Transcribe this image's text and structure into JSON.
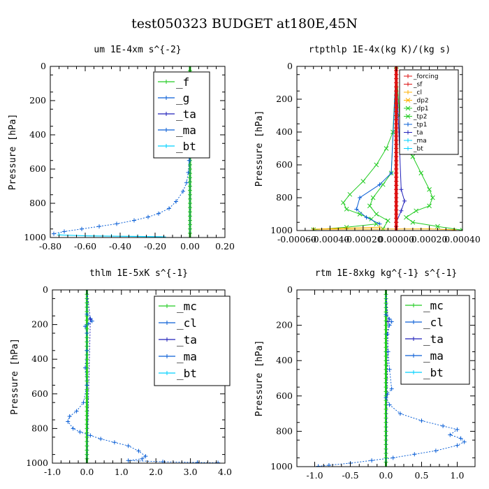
{
  "figure_title": "test050323  BUDGET at180E,45N",
  "colors": {
    "green": "#22cc22",
    "blue": "#0a5fd6",
    "cyan": "#00d0ff",
    "red": "#dd1111",
    "orange": "#ffb000",
    "navy": "#2222bb"
  },
  "chart_data": [
    {
      "type": "line",
      "title": "um   1E-4xm s^{-2}",
      "ylabel": "Pressure [hPa]",
      "xlabel": "",
      "xlim": [
        -0.8,
        0.2
      ],
      "ylim": [
        1000,
        0
      ],
      "xticks": [
        -0.8,
        -0.6,
        -0.4,
        -0.2,
        0.0,
        0.2
      ],
      "xtick_labels": [
        "-0.80",
        "-0.60",
        "-0.40",
        "-0.20",
        "0.00",
        "0.20"
      ],
      "yticks": [
        0,
        200,
        400,
        600,
        800,
        1000
      ],
      "ytick_labels": [
        "0",
        "200",
        "400",
        "600",
        "800",
        "1000"
      ],
      "legend": [
        "_f",
        "_g",
        "_ta",
        "_ma",
        "_bt"
      ],
      "legend_style": "large",
      "series": [
        {
          "name": "_f",
          "color": "green",
          "width": 3,
          "marker": "+",
          "x": [
            0.0,
            0.0
          ],
          "y": [
            0,
            1000
          ]
        },
        {
          "name": "_g",
          "color": "blue",
          "width": 1,
          "dash": "2,2",
          "marker": "+",
          "x": [
            0.0,
            0.0,
            -0.01,
            -0.02,
            -0.005,
            0.0,
            0.0,
            0.0,
            -0.005,
            -0.01,
            -0.02,
            -0.04,
            -0.08,
            -0.12,
            -0.18,
            -0.24,
            -0.32,
            -0.42,
            -0.52,
            -0.62,
            -0.72,
            -0.78
          ],
          "y": [
            0,
            140,
            160,
            185,
            210,
            260,
            350,
            450,
            550,
            620,
            680,
            730,
            790,
            830,
            860,
            880,
            900,
            920,
            935,
            950,
            965,
            978
          ]
        },
        {
          "name": "_ta",
          "color": "navy",
          "width": 1,
          "dash": "2,2",
          "marker": "+",
          "x": [
            0.0,
            0.0,
            -0.005,
            0.0,
            0.0
          ],
          "y": [
            0,
            180,
            200,
            230,
            1000
          ]
        },
        {
          "name": "_bt",
          "color": "cyan",
          "width": 1.2,
          "marker": "+",
          "x": [
            -0.75,
            -0.6,
            -0.45,
            -0.3,
            -0.15
          ],
          "y": [
            985,
            990,
            992,
            994,
            996
          ]
        }
      ]
    },
    {
      "type": "line",
      "title": "rtpthlp   1E-4x(kg K)/(kg s)",
      "ylabel": "Pressure [hPa]",
      "xlabel": "",
      "xlim": [
        -0.0006,
        0.0004
      ],
      "ylim": [
        1000,
        0
      ],
      "xticks": [
        -0.0006,
        -0.0004,
        -0.0002,
        0.0,
        0.0002,
        0.0004
      ],
      "xtick_labels": [
        "-0.00060",
        "-0.00040",
        "-0.00020",
        "0.00000",
        "0.00020",
        "0.00040"
      ],
      "yticks": [
        0,
        200,
        400,
        600,
        800,
        1000
      ],
      "ytick_labels": [
        "0",
        "200",
        "400",
        "600",
        "800",
        "1000"
      ],
      "legend": [
        "_forcing",
        "_sf",
        "_cl",
        "_dp2",
        "_dp1",
        "_tp2",
        "_tp1",
        "_ta",
        "_ma",
        "_bt"
      ],
      "legend_colors": [
        "red",
        "red",
        "orange",
        "orange",
        "green",
        "green",
        "blue",
        "navy",
        "cyan",
        "cyan"
      ],
      "legend_style": "small",
      "series": [
        {
          "name": "_dp1",
          "color": "green",
          "width": 1,
          "marker": "x",
          "x": [
            0.0,
            2e-05,
            5e-05,
            0.0001,
            0.00015,
            0.0002,
            0.00022,
            0.0002,
            0.00012,
            6e-05,
            0.0001,
            0.00025,
            0.0004
          ],
          "y": [
            0,
            300,
            450,
            550,
            650,
            750,
            800,
            850,
            880,
            920,
            950,
            975,
            998
          ]
        },
        {
          "name": "_dp1",
          "color": "green",
          "width": 1,
          "marker": "x",
          "x": [
            0.0,
            -2e-05,
            -6e-05,
            -0.00012,
            -0.0002,
            -0.00028,
            -0.00032,
            -0.0003,
            -0.00022,
            -0.00015,
            -0.00012,
            -0.0003,
            -0.0005
          ],
          "y": [
            0,
            400,
            500,
            600,
            700,
            780,
            830,
            870,
            900,
            930,
            960,
            980,
            995
          ]
        },
        {
          "name": "_tp2",
          "color": "green",
          "width": 1,
          "marker": "x",
          "x": [
            0.0,
            -3e-05,
            -8e-05,
            -0.00014,
            -0.00016,
            -0.00012,
            -5e-05,
            -8e-05
          ],
          "y": [
            0,
            650,
            720,
            800,
            850,
            900,
            940,
            990
          ]
        },
        {
          "name": "_tp1",
          "color": "blue",
          "width": 1,
          "marker": "+",
          "x": [
            0.0,
            -3e-05,
            -0.0001,
            -0.00022,
            -0.00024,
            -0.00018,
            -0.0001
          ],
          "y": [
            0,
            650,
            720,
            800,
            870,
            920,
            960
          ]
        },
        {
          "name": "_ta",
          "color": "navy",
          "width": 1,
          "marker": "+",
          "x": [
            0.0,
            3e-05,
            5e-05,
            3e-05,
            0.0
          ],
          "y": [
            0,
            750,
            820,
            880,
            950
          ]
        },
        {
          "name": "_cl",
          "color": "orange",
          "width": 1,
          "marker": "+",
          "x": [
            -0.0001,
            -0.0003,
            -0.0005,
            0.0002,
            0.00035
          ],
          "y": [
            980,
            985,
            992,
            990,
            995
          ]
        },
        {
          "name": "_sf",
          "color": "red",
          "width": 4,
          "marker": "+",
          "x": [
            0.0,
            0.0
          ],
          "y": [
            0,
            1000
          ]
        },
        {
          "name": "_forcing",
          "color": "red",
          "width": 1.5,
          "marker": "+",
          "x": [
            0.0,
            0.0
          ],
          "y": [
            0,
            1000
          ]
        }
      ]
    },
    {
      "type": "line",
      "title": "thlm   1E-5xK s^{-1}",
      "ylabel": "Pressure [hPa]",
      "xlabel": "",
      "xlim": [
        -1.0,
        4.0
      ],
      "ylim": [
        1000,
        0
      ],
      "xticks": [
        -1.0,
        0.0,
        1.0,
        2.0,
        3.0,
        4.0
      ],
      "xtick_labels": [
        "-1.0",
        "0.0",
        "1.0",
        "2.0",
        "3.0",
        "4.0"
      ],
      "yticks": [
        0,
        200,
        400,
        600,
        800,
        1000
      ],
      "ytick_labels": [
        "0",
        "200",
        "400",
        "600",
        "800",
        "1000"
      ],
      "legend": [
        "_mc",
        "_cl",
        "_ta",
        "_ma",
        "_bt"
      ],
      "legend_style": "large",
      "series": [
        {
          "name": "_mc",
          "color": "green",
          "width": 3,
          "marker": "+",
          "x": [
            0.0,
            0.0
          ],
          "y": [
            0,
            1000
          ]
        },
        {
          "name": "_cl",
          "color": "blue",
          "width": 1,
          "dash": "2,2",
          "marker": "+",
          "x": [
            0.0,
            0.0,
            0.1,
            0.15,
            0.05,
            -0.05,
            0.0,
            0.0,
            -0.05,
            0.0,
            -0.1,
            -0.3,
            -0.5,
            -0.55,
            -0.4,
            -0.2,
            0.1,
            0.4,
            0.8,
            1.2,
            1.5,
            1.7,
            1.6,
            1.2,
            2.2,
            3.2,
            3.8
          ],
          "y": [
            0,
            140,
            165,
            180,
            195,
            210,
            250,
            350,
            450,
            550,
            650,
            700,
            730,
            760,
            800,
            820,
            840,
            860,
            880,
            900,
            930,
            960,
            975,
            985,
            992,
            996,
            998
          ]
        },
        {
          "name": "_ta",
          "color": "navy",
          "width": 1,
          "dash": "2,2",
          "marker": "+",
          "x": [
            0.0,
            0.1,
            0.0
          ],
          "y": [
            0,
            170,
            1000
          ]
        }
      ]
    },
    {
      "type": "line",
      "title": "rtm   1E-8xkg kg^{-1} s^{-1}",
      "ylabel": "Pressure [hPa]",
      "xlabel": "",
      "xlim": [
        -1.25,
        1.25
      ],
      "ylim": [
        1000,
        0
      ],
      "xticks": [
        -1.0,
        -0.5,
        0.0,
        0.5,
        1.0
      ],
      "xtick_labels": [
        "-1.0",
        "-0.5",
        "0.0",
        "0.5",
        "1.0"
      ],
      "yticks": [
        0,
        200,
        400,
        600,
        800,
        1000
      ],
      "ytick_labels": [
        "0",
        "200",
        "400",
        "600",
        "800",
        "1000"
      ],
      "legend": [
        "_mc",
        "_cl",
        "_ta",
        "_ma",
        "_bt"
      ],
      "legend_style": "large",
      "series": [
        {
          "name": "_mc",
          "color": "green",
          "width": 3,
          "marker": "+",
          "x": [
            0.0,
            0.0
          ],
          "y": [
            0,
            1000
          ]
        },
        {
          "name": "_cl",
          "color": "blue",
          "width": 1,
          "dash": "2,2",
          "marker": "+",
          "x": [
            0.0,
            0.0,
            0.05,
            0.08,
            0.05,
            0.02,
            0.03,
            0.05,
            0.08,
            0.02,
            0.0,
            0.05,
            0.2,
            0.5,
            0.8,
            1.0,
            0.9,
            1.05,
            1.1,
            1.0,
            0.7,
            0.4,
            0.1,
            -0.2,
            -0.5,
            -0.8,
            -0.95
          ],
          "y": [
            0,
            140,
            165,
            180,
            200,
            250,
            350,
            450,
            560,
            590,
            610,
            650,
            700,
            740,
            770,
            790,
            820,
            840,
            860,
            880,
            910,
            930,
            950,
            965,
            980,
            992,
            998
          ]
        },
        {
          "name": "_ta",
          "color": "navy",
          "width": 1,
          "dash": "2,2",
          "marker": "+",
          "x": [
            0.0,
            0.03,
            0.0
          ],
          "y": [
            0,
            180,
            1000
          ]
        }
      ]
    }
  ]
}
